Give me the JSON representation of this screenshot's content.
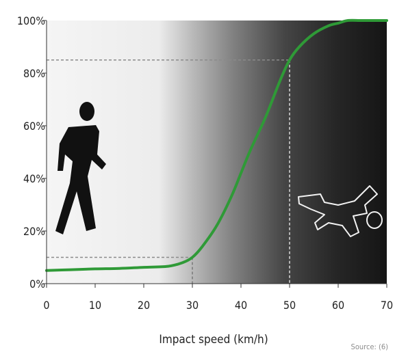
{
  "chart_data": {
    "type": "line",
    "xlabel": "Impact speed (km/h)",
    "ylabel": "",
    "title": "",
    "xlim": [
      0,
      70
    ],
    "ylim": [
      0,
      100
    ],
    "x_ticks": [
      0,
      10,
      20,
      30,
      40,
      50,
      60,
      70
    ],
    "y_ticks": [
      0,
      20,
      40,
      60,
      80,
      100
    ],
    "y_tick_labels": [
      "0%",
      "20%",
      "40%",
      "60%",
      "80%",
      "100%"
    ],
    "series": [
      {
        "color": "#2f9a37",
        "x": [
          0,
          5,
          10,
          15,
          20,
          25,
          28,
          30,
          32,
          35,
          38,
          40,
          42,
          45,
          48,
          50,
          52,
          55,
          58,
          60,
          62,
          65,
          70
        ],
        "y": [
          5,
          5.3,
          5.6,
          5.8,
          6.2,
          6.6,
          8,
          10,
          14,
          22,
          33,
          42,
          51,
          63,
          77,
          85,
          90,
          95,
          98,
          99,
          100,
          100,
          100
        ]
      }
    ],
    "reference_points": [
      {
        "x": 30,
        "y": 10
      },
      {
        "x": 50,
        "y": 85
      }
    ],
    "source_label": "Source: (6)"
  },
  "icons": [
    "walking-pedestrian-icon",
    "fallen-pedestrian-outline-icon"
  ]
}
